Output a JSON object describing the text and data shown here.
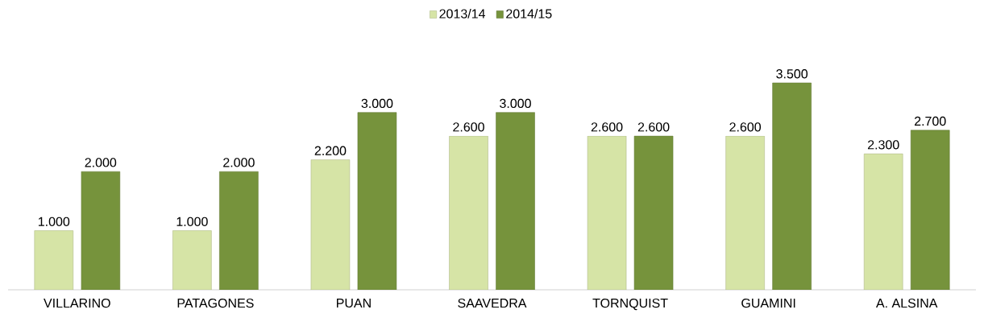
{
  "chart_data": {
    "type": "bar",
    "legend": "top",
    "categories": [
      "VILLARINO",
      "PATAGONES",
      "PUAN",
      "SAAVEDRA",
      "TORNQUIST",
      "GUAMINI",
      "A. ALSINA"
    ],
    "series": [
      {
        "name": "2013/14",
        "color": "#d6e4a6",
        "values": [
          1000,
          1000,
          2200,
          2600,
          2600,
          2600,
          2300
        ],
        "value_labels": [
          "1.000",
          "1.000",
          "2.200",
          "2.600",
          "2.600",
          "2.600",
          "2.300"
        ]
      },
      {
        "name": "2014/15",
        "color": "#76933c",
        "values": [
          2000,
          2000,
          3000,
          3000,
          2600,
          3500,
          2700
        ],
        "value_labels": [
          "2.000",
          "2.000",
          "3.000",
          "3.000",
          "2.600",
          "3.500",
          "2.700"
        ]
      }
    ]
  }
}
